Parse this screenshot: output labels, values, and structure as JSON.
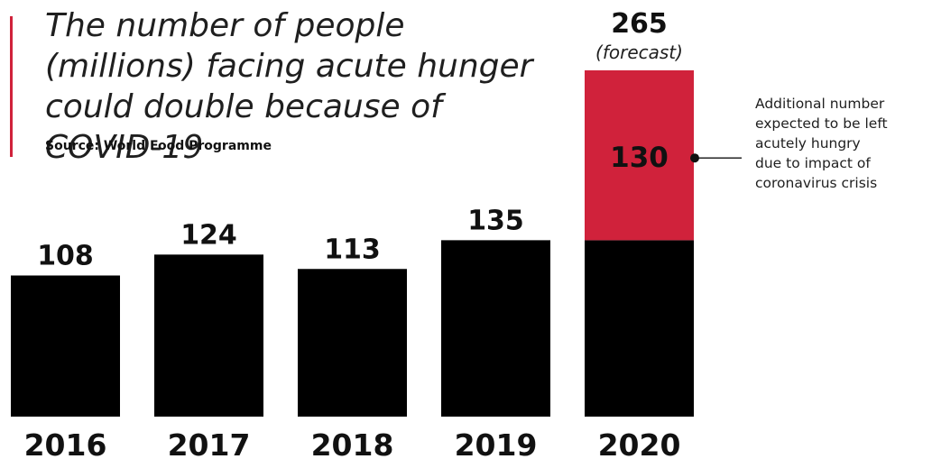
{
  "title": "The number of people (millions) facing acute hunger could double because of COVID-19",
  "source": "Source: World Food Programme",
  "annotation_lines": [
    "Additional number",
    "expected to be left",
    "acutely hungry",
    "due to impact of",
    "coronavirus crisis"
  ],
  "colors": {
    "bar": "#000000",
    "additional": "#d0223b",
    "text": "#111111",
    "accent_rule": "#d0223b"
  },
  "chart_data": {
    "type": "bar",
    "stacked": true,
    "categories": [
      "2016",
      "2017",
      "2018",
      "2019",
      "2020"
    ],
    "series": [
      {
        "name": "",
        "values": [
          108,
          124,
          113,
          135,
          135
        ]
      },
      {
        "name": "Additional number expected to be left acutely hungry due to impact of coronavirus crisis",
        "values": [
          0,
          0,
          0,
          0,
          130
        ]
      }
    ],
    "value_labels": [
      "108",
      "124",
      "113",
      "135",
      "265"
    ],
    "forecast_note": "(forecast)",
    "additional_label": "130",
    "ylim": [
      0,
      265
    ],
    "grid": false,
    "legend": "none"
  }
}
